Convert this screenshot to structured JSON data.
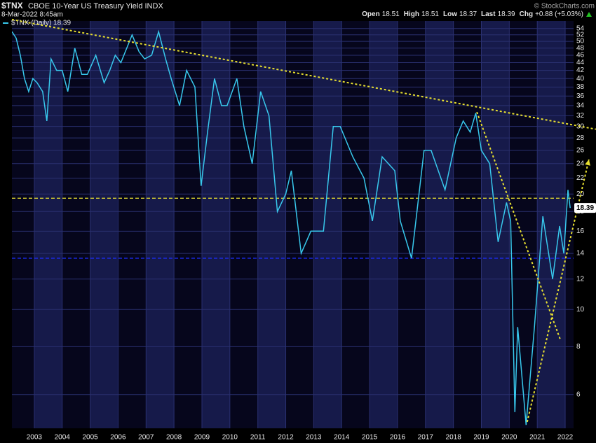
{
  "chart_data": {
    "type": "line",
    "symbol": "$TNX",
    "title": "CBOE 10-Year US Treasury Yield INDX",
    "subtitle": "8-Mar-2022 8:45am",
    "quote": [
      {
        "label": "Open",
        "value": 18.51
      },
      {
        "label": "High",
        "value": 18.51
      },
      {
        "label": "Low",
        "value": 18.37
      },
      {
        "label": "Last",
        "value": 18.39
      },
      {
        "label": "Chg",
        "value": "+0.88 (+5.03%)"
      }
    ],
    "credit": "© StockCharts.com",
    "last_label": 18.39,
    "log_scale": true,
    "grid": true,
    "xlim": [
      2002.2,
      2022.3
    ],
    "xticks": [
      2003,
      2004,
      2005,
      2006,
      2007,
      2008,
      2009,
      2010,
      2011,
      2012,
      2013,
      2014,
      2015,
      2016,
      2017,
      2018,
      2019,
      2020,
      2021,
      2022
    ],
    "ylim": [
      4.9,
      56.5
    ],
    "yticks": [
      6,
      8,
      10,
      12,
      14,
      16,
      18,
      20,
      22,
      24,
      26,
      28,
      30,
      32,
      34,
      36,
      38,
      40,
      42,
      44,
      46,
      48,
      50,
      52,
      54
    ],
    "series": [
      {
        "name": "$TNX (Daily) 18.39",
        "color": "#38c8ec",
        "x": [
          2002.2,
          2002.35,
          2002.5,
          2002.65,
          2002.8,
          2002.95,
          2003.1,
          2003.3,
          2003.45,
          2003.6,
          2003.8,
          2004.0,
          2004.2,
          2004.45,
          2004.7,
          2004.9,
          2005.2,
          2005.5,
          2005.7,
          2005.9,
          2006.1,
          2006.5,
          2006.75,
          2006.95,
          2007.2,
          2007.45,
          2007.7,
          2007.9,
          2008.2,
          2008.45,
          2008.75,
          2008.97,
          2009.2,
          2009.45,
          2009.7,
          2009.9,
          2010.25,
          2010.5,
          2010.8,
          2011.1,
          2011.4,
          2011.7,
          2012.0,
          2012.2,
          2012.55,
          2012.9,
          2013.35,
          2013.7,
          2013.95,
          2014.4,
          2014.8,
          2015.1,
          2015.45,
          2015.9,
          2016.1,
          2016.5,
          2016.95,
          2017.2,
          2017.7,
          2018.1,
          2018.35,
          2018.6,
          2018.8,
          2019.0,
          2019.3,
          2019.6,
          2019.9,
          2020.05,
          2020.2,
          2020.3,
          2020.6,
          2020.9,
          2021.2,
          2021.55,
          2021.8,
          2021.95,
          2022.1,
          2022.18
        ],
        "values": [
          53,
          51,
          46,
          40,
          37,
          40,
          39,
          37,
          31,
          45,
          42,
          42,
          37,
          48,
          41,
          41,
          46,
          39,
          42,
          46,
          44,
          52,
          47,
          45,
          46,
          53,
          45,
          40,
          34,
          42,
          38,
          21,
          29,
          40,
          34,
          34,
          40,
          30,
          24,
          37,
          32,
          18,
          20,
          23,
          14,
          16,
          16,
          30,
          30,
          25,
          22,
          17,
          25,
          23,
          17,
          13.6,
          26,
          26,
          20.5,
          28,
          31,
          29,
          32.5,
          26,
          24,
          15,
          19,
          17,
          5.4,
          9,
          5,
          9,
          17.5,
          12,
          16.5,
          14,
          20.5,
          18.39
        ]
      }
    ],
    "hlines": [
      {
        "value": 19.5,
        "color": "#e8e030"
      },
      {
        "value": 13.6,
        "color": "#1c2cff"
      }
    ],
    "trendlines": [
      {
        "x": [
          2002.2,
          2023.1
        ],
        "y": [
          57,
          29.5
        ],
        "color": "#e8e030"
      },
      {
        "x": [
          2018.84,
          2021.84
        ],
        "y": [
          32.7,
          8.29
        ],
        "color": "#e8e030"
      },
      {
        "x": [
          2020.64,
          2022.85
        ],
        "y": [
          5.09,
          24.6
        ],
        "color": "#e8e030"
      }
    ]
  }
}
